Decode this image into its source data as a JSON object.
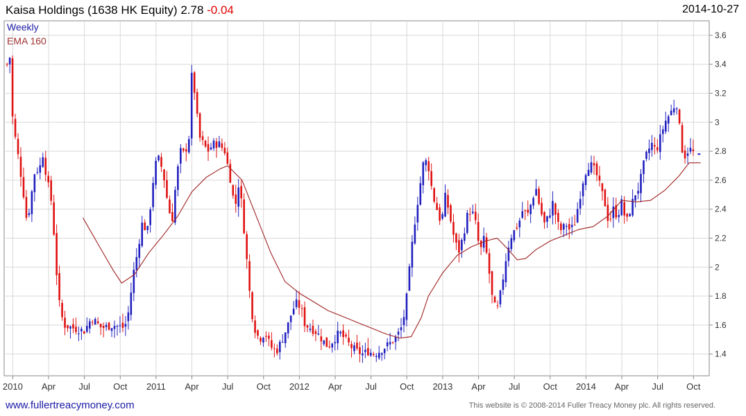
{
  "header": {
    "title": "Kaisa Holdings (1638 HK Equity)",
    "last": "2.78",
    "change": "-0.04",
    "date": "2014-10-27"
  },
  "legend": {
    "weekly": "Weekly",
    "ema": "EMA 160"
  },
  "footer": {
    "website": "www.fullertreacymoney.com",
    "copyright": "This website is © 2008-2014 Fuller Treacy Money plc. All rights reserved."
  },
  "colors": {
    "up": "#1f1fbf",
    "down": "#e01010",
    "ema": "#a02020",
    "grid": "#d8d8d8",
    "axis": "#888888"
  },
  "chart_data": {
    "type": "candlestick",
    "ylim": [
      1.25,
      3.7
    ],
    "yticks": [
      1.4,
      1.6,
      1.8,
      2,
      2.2,
      2.4,
      2.6,
      2.8,
      3,
      3.2,
      3.4,
      3.6
    ],
    "xlim": [
      2009.94,
      2014.86
    ],
    "xticks": [
      {
        "label": "2010",
        "t": 2010.0
      },
      {
        "label": "Apr",
        "t": 2010.25
      },
      {
        "label": "Jul",
        "t": 2010.5
      },
      {
        "label": "Oct",
        "t": 2010.75
      },
      {
        "label": "2011",
        "t": 2011.0
      },
      {
        "label": "Apr",
        "t": 2011.25
      },
      {
        "label": "Jul",
        "t": 2011.5
      },
      {
        "label": "Oct",
        "t": 2011.75
      },
      {
        "label": "2012",
        "t": 2012.0
      },
      {
        "label": "Apr",
        "t": 2012.25
      },
      {
        "label": "Jul",
        "t": 2012.5
      },
      {
        "label": "Oct",
        "t": 2012.75
      },
      {
        "label": "2013",
        "t": 2013.0
      },
      {
        "label": "Apr",
        "t": 2013.25
      },
      {
        "label": "Jul",
        "t": 2013.5
      },
      {
        "label": "Oct",
        "t": 2013.75
      },
      {
        "label": "2014",
        "t": 2014.0
      },
      {
        "label": "Apr",
        "t": 2014.25
      },
      {
        "label": "Jul",
        "t": 2014.5
      },
      {
        "label": "Oct",
        "t": 2014.75
      }
    ],
    "close_anchors": [
      [
        2009.96,
        3.4
      ],
      [
        2009.98,
        3.45
      ],
      [
        2010.0,
        3.0
      ],
      [
        2010.04,
        2.75
      ],
      [
        2010.07,
        2.55
      ],
      [
        2010.1,
        2.3
      ],
      [
        2010.13,
        2.5
      ],
      [
        2010.16,
        2.7
      ],
      [
        2010.18,
        2.65
      ],
      [
        2010.21,
        2.78
      ],
      [
        2010.24,
        2.6
      ],
      [
        2010.27,
        2.45
      ],
      [
        2010.29,
        2.2
      ],
      [
        2010.31,
        1.9
      ],
      [
        2010.33,
        1.7
      ],
      [
        2010.36,
        1.6
      ],
      [
        2010.42,
        1.58
      ],
      [
        2010.5,
        1.56
      ],
      [
        2010.55,
        1.65
      ],
      [
        2010.62,
        1.58
      ],
      [
        2010.7,
        1.6
      ],
      [
        2010.78,
        1.58
      ],
      [
        2010.81,
        1.7
      ],
      [
        2010.84,
        1.95
      ],
      [
        2010.87,
        2.1
      ],
      [
        2010.9,
        2.3
      ],
      [
        2010.94,
        2.25
      ],
      [
        2010.97,
        2.5
      ],
      [
        2010.99,
        2.7
      ],
      [
        2011.02,
        2.75
      ],
      [
        2011.05,
        2.65
      ],
      [
        2011.08,
        2.45
      ],
      [
        2011.11,
        2.3
      ],
      [
        2011.14,
        2.6
      ],
      [
        2011.17,
        2.8
      ],
      [
        2011.2,
        2.78
      ],
      [
        2011.23,
        2.9
      ],
      [
        2011.25,
        3.35
      ],
      [
        2011.27,
        3.2
      ],
      [
        2011.3,
        2.9
      ],
      [
        2011.33,
        2.85
      ],
      [
        2011.36,
        2.8
      ],
      [
        2011.4,
        2.85
      ],
      [
        2011.44,
        2.85
      ],
      [
        2011.48,
        2.8
      ],
      [
        2011.52,
        2.6
      ],
      [
        2011.55,
        2.4
      ],
      [
        2011.58,
        2.6
      ],
      [
        2011.62,
        2.2
      ],
      [
        2011.65,
        1.85
      ],
      [
        2011.68,
        1.6
      ],
      [
        2011.72,
        1.5
      ],
      [
        2011.76,
        1.55
      ],
      [
        2011.8,
        1.45
      ],
      [
        2011.84,
        1.42
      ],
      [
        2011.88,
        1.5
      ],
      [
        2011.92,
        1.6
      ],
      [
        2011.95,
        1.7
      ],
      [
        2011.98,
        1.75
      ],
      [
        2012.01,
        1.72
      ],
      [
        2012.04,
        1.6
      ],
      [
        2012.08,
        1.58
      ],
      [
        2012.12,
        1.55
      ],
      [
        2012.16,
        1.5
      ],
      [
        2012.2,
        1.45
      ],
      [
        2012.24,
        1.5
      ],
      [
        2012.28,
        1.55
      ],
      [
        2012.32,
        1.5
      ],
      [
        2012.36,
        1.45
      ],
      [
        2012.4,
        1.42
      ],
      [
        2012.44,
        1.4
      ],
      [
        2012.48,
        1.42
      ],
      [
        2012.52,
        1.4
      ],
      [
        2012.56,
        1.42
      ],
      [
        2012.6,
        1.45
      ],
      [
        2012.64,
        1.48
      ],
      [
        2012.68,
        1.52
      ],
      [
        2012.72,
        1.6
      ],
      [
        2012.75,
        1.8
      ],
      [
        2012.78,
        2.1
      ],
      [
        2012.81,
        2.35
      ],
      [
        2012.84,
        2.55
      ],
      [
        2012.87,
        2.75
      ],
      [
        2012.9,
        2.7
      ],
      [
        2012.93,
        2.5
      ],
      [
        2012.96,
        2.4
      ],
      [
        2012.99,
        2.3
      ],
      [
        2013.02,
        2.5
      ],
      [
        2013.05,
        2.35
      ],
      [
        2013.08,
        2.2
      ],
      [
        2013.11,
        2.1
      ],
      [
        2013.14,
        2.2
      ],
      [
        2013.17,
        2.35
      ],
      [
        2013.2,
        2.4
      ],
      [
        2013.23,
        2.3
      ],
      [
        2013.26,
        2.1
      ],
      [
        2013.29,
        2.2
      ],
      [
        2013.32,
        2.0
      ],
      [
        2013.35,
        1.75
      ],
      [
        2013.38,
        1.7
      ],
      [
        2013.41,
        1.85
      ],
      [
        2013.44,
        2.05
      ],
      [
        2013.47,
        2.2
      ],
      [
        2013.5,
        2.25
      ],
      [
        2013.53,
        2.3
      ],
      [
        2013.56,
        2.4
      ],
      [
        2013.59,
        2.35
      ],
      [
        2013.62,
        2.45
      ],
      [
        2013.65,
        2.55
      ],
      [
        2013.68,
        2.4
      ],
      [
        2013.71,
        2.3
      ],
      [
        2013.74,
        2.35
      ],
      [
        2013.77,
        2.45
      ],
      [
        2013.8,
        2.3
      ],
      [
        2013.83,
        2.25
      ],
      [
        2013.86,
        2.3
      ],
      [
        2013.89,
        2.25
      ],
      [
        2013.92,
        2.3
      ],
      [
        2013.95,
        2.45
      ],
      [
        2013.98,
        2.6
      ],
      [
        2014.01,
        2.7
      ],
      [
        2014.04,
        2.7
      ],
      [
        2014.07,
        2.65
      ],
      [
        2014.1,
        2.55
      ],
      [
        2014.13,
        2.45
      ],
      [
        2014.16,
        2.3
      ],
      [
        2014.19,
        2.4
      ],
      [
        2014.22,
        2.35
      ],
      [
        2014.25,
        2.45
      ],
      [
        2014.28,
        2.3
      ],
      [
        2014.31,
        2.4
      ],
      [
        2014.34,
        2.5
      ],
      [
        2014.37,
        2.55
      ],
      [
        2014.4,
        2.7
      ],
      [
        2014.43,
        2.8
      ],
      [
        2014.46,
        2.85
      ],
      [
        2014.49,
        2.8
      ],
      [
        2014.52,
        2.9
      ],
      [
        2014.55,
        3.0
      ],
      [
        2014.58,
        3.05
      ],
      [
        2014.61,
        3.1
      ],
      [
        2014.63,
        3.15
      ],
      [
        2014.66,
        2.9
      ],
      [
        2014.68,
        2.75
      ],
      [
        2014.72,
        2.82
      ],
      [
        2014.76,
        2.78
      ]
    ],
    "ema_anchors": [
      [
        2010.49,
        2.34
      ],
      [
        2010.6,
        2.15
      ],
      [
        2010.7,
        1.98
      ],
      [
        2010.76,
        1.89
      ],
      [
        2010.85,
        1.95
      ],
      [
        2010.95,
        2.1
      ],
      [
        2011.05,
        2.22
      ],
      [
        2011.15,
        2.35
      ],
      [
        2011.25,
        2.52
      ],
      [
        2011.35,
        2.62
      ],
      [
        2011.45,
        2.68
      ],
      [
        2011.5,
        2.7
      ],
      [
        2011.6,
        2.6
      ],
      [
        2011.7,
        2.35
      ],
      [
        2011.8,
        2.1
      ],
      [
        2011.9,
        1.9
      ],
      [
        2012.0,
        1.82
      ],
      [
        2012.1,
        1.76
      ],
      [
        2012.2,
        1.7
      ],
      [
        2012.3,
        1.66
      ],
      [
        2012.4,
        1.62
      ],
      [
        2012.5,
        1.58
      ],
      [
        2012.6,
        1.54
      ],
      [
        2012.7,
        1.51
      ],
      [
        2012.78,
        1.52
      ],
      [
        2012.85,
        1.65
      ],
      [
        2012.9,
        1.8
      ],
      [
        2013.0,
        1.96
      ],
      [
        2013.1,
        2.08
      ],
      [
        2013.2,
        2.14
      ],
      [
        2013.3,
        2.18
      ],
      [
        2013.38,
        2.2
      ],
      [
        2013.45,
        2.13
      ],
      [
        2013.52,
        2.05
      ],
      [
        2013.58,
        2.06
      ],
      [
        2013.65,
        2.12
      ],
      [
        2013.75,
        2.18
      ],
      [
        2013.85,
        2.22
      ],
      [
        2013.95,
        2.26
      ],
      [
        2014.05,
        2.28
      ],
      [
        2014.15,
        2.35
      ],
      [
        2014.25,
        2.46
      ],
      [
        2014.35,
        2.45
      ],
      [
        2014.45,
        2.46
      ],
      [
        2014.55,
        2.53
      ],
      [
        2014.65,
        2.63
      ],
      [
        2014.72,
        2.72
      ],
      [
        2014.8,
        2.72
      ]
    ]
  }
}
